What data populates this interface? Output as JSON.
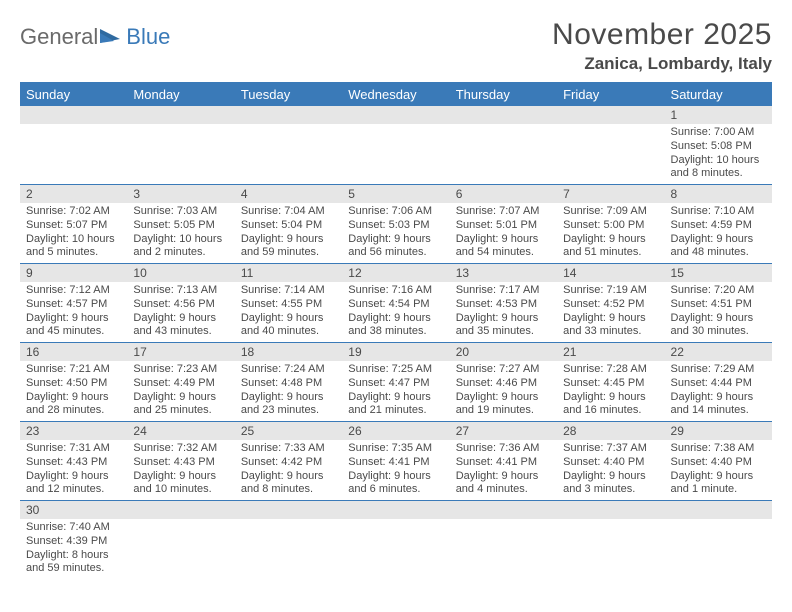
{
  "logo": {
    "text1": "General",
    "text2": "Blue"
  },
  "title": "November 2025",
  "location": "Zanica, Lombardy, Italy",
  "colors": {
    "header_bg": "#3a7ab8",
    "header_text": "#ffffff",
    "daynum_bg": "#e6e6e6",
    "row_border": "#3a7ab8",
    "body_text": "#4a4a4a"
  },
  "weekdays": [
    "Sunday",
    "Monday",
    "Tuesday",
    "Wednesday",
    "Thursday",
    "Friday",
    "Saturday"
  ],
  "weeks": [
    [
      {
        "n": "",
        "sr": "",
        "ss": "",
        "dl": ""
      },
      {
        "n": "",
        "sr": "",
        "ss": "",
        "dl": ""
      },
      {
        "n": "",
        "sr": "",
        "ss": "",
        "dl": ""
      },
      {
        "n": "",
        "sr": "",
        "ss": "",
        "dl": ""
      },
      {
        "n": "",
        "sr": "",
        "ss": "",
        "dl": ""
      },
      {
        "n": "",
        "sr": "",
        "ss": "",
        "dl": ""
      },
      {
        "n": "1",
        "sr": "Sunrise: 7:00 AM",
        "ss": "Sunset: 5:08 PM",
        "dl": "Daylight: 10 hours and 8 minutes."
      }
    ],
    [
      {
        "n": "2",
        "sr": "Sunrise: 7:02 AM",
        "ss": "Sunset: 5:07 PM",
        "dl": "Daylight: 10 hours and 5 minutes."
      },
      {
        "n": "3",
        "sr": "Sunrise: 7:03 AM",
        "ss": "Sunset: 5:05 PM",
        "dl": "Daylight: 10 hours and 2 minutes."
      },
      {
        "n": "4",
        "sr": "Sunrise: 7:04 AM",
        "ss": "Sunset: 5:04 PM",
        "dl": "Daylight: 9 hours and 59 minutes."
      },
      {
        "n": "5",
        "sr": "Sunrise: 7:06 AM",
        "ss": "Sunset: 5:03 PM",
        "dl": "Daylight: 9 hours and 56 minutes."
      },
      {
        "n": "6",
        "sr": "Sunrise: 7:07 AM",
        "ss": "Sunset: 5:01 PM",
        "dl": "Daylight: 9 hours and 54 minutes."
      },
      {
        "n": "7",
        "sr": "Sunrise: 7:09 AM",
        "ss": "Sunset: 5:00 PM",
        "dl": "Daylight: 9 hours and 51 minutes."
      },
      {
        "n": "8",
        "sr": "Sunrise: 7:10 AM",
        "ss": "Sunset: 4:59 PM",
        "dl": "Daylight: 9 hours and 48 minutes."
      }
    ],
    [
      {
        "n": "9",
        "sr": "Sunrise: 7:12 AM",
        "ss": "Sunset: 4:57 PM",
        "dl": "Daylight: 9 hours and 45 minutes."
      },
      {
        "n": "10",
        "sr": "Sunrise: 7:13 AM",
        "ss": "Sunset: 4:56 PM",
        "dl": "Daylight: 9 hours and 43 minutes."
      },
      {
        "n": "11",
        "sr": "Sunrise: 7:14 AM",
        "ss": "Sunset: 4:55 PM",
        "dl": "Daylight: 9 hours and 40 minutes."
      },
      {
        "n": "12",
        "sr": "Sunrise: 7:16 AM",
        "ss": "Sunset: 4:54 PM",
        "dl": "Daylight: 9 hours and 38 minutes."
      },
      {
        "n": "13",
        "sr": "Sunrise: 7:17 AM",
        "ss": "Sunset: 4:53 PM",
        "dl": "Daylight: 9 hours and 35 minutes."
      },
      {
        "n": "14",
        "sr": "Sunrise: 7:19 AM",
        "ss": "Sunset: 4:52 PM",
        "dl": "Daylight: 9 hours and 33 minutes."
      },
      {
        "n": "15",
        "sr": "Sunrise: 7:20 AM",
        "ss": "Sunset: 4:51 PM",
        "dl": "Daylight: 9 hours and 30 minutes."
      }
    ],
    [
      {
        "n": "16",
        "sr": "Sunrise: 7:21 AM",
        "ss": "Sunset: 4:50 PM",
        "dl": "Daylight: 9 hours and 28 minutes."
      },
      {
        "n": "17",
        "sr": "Sunrise: 7:23 AM",
        "ss": "Sunset: 4:49 PM",
        "dl": "Daylight: 9 hours and 25 minutes."
      },
      {
        "n": "18",
        "sr": "Sunrise: 7:24 AM",
        "ss": "Sunset: 4:48 PM",
        "dl": "Daylight: 9 hours and 23 minutes."
      },
      {
        "n": "19",
        "sr": "Sunrise: 7:25 AM",
        "ss": "Sunset: 4:47 PM",
        "dl": "Daylight: 9 hours and 21 minutes."
      },
      {
        "n": "20",
        "sr": "Sunrise: 7:27 AM",
        "ss": "Sunset: 4:46 PM",
        "dl": "Daylight: 9 hours and 19 minutes."
      },
      {
        "n": "21",
        "sr": "Sunrise: 7:28 AM",
        "ss": "Sunset: 4:45 PM",
        "dl": "Daylight: 9 hours and 16 minutes."
      },
      {
        "n": "22",
        "sr": "Sunrise: 7:29 AM",
        "ss": "Sunset: 4:44 PM",
        "dl": "Daylight: 9 hours and 14 minutes."
      }
    ],
    [
      {
        "n": "23",
        "sr": "Sunrise: 7:31 AM",
        "ss": "Sunset: 4:43 PM",
        "dl": "Daylight: 9 hours and 12 minutes."
      },
      {
        "n": "24",
        "sr": "Sunrise: 7:32 AM",
        "ss": "Sunset: 4:43 PM",
        "dl": "Daylight: 9 hours and 10 minutes."
      },
      {
        "n": "25",
        "sr": "Sunrise: 7:33 AM",
        "ss": "Sunset: 4:42 PM",
        "dl": "Daylight: 9 hours and 8 minutes."
      },
      {
        "n": "26",
        "sr": "Sunrise: 7:35 AM",
        "ss": "Sunset: 4:41 PM",
        "dl": "Daylight: 9 hours and 6 minutes."
      },
      {
        "n": "27",
        "sr": "Sunrise: 7:36 AM",
        "ss": "Sunset: 4:41 PM",
        "dl": "Daylight: 9 hours and 4 minutes."
      },
      {
        "n": "28",
        "sr": "Sunrise: 7:37 AM",
        "ss": "Sunset: 4:40 PM",
        "dl": "Daylight: 9 hours and 3 minutes."
      },
      {
        "n": "29",
        "sr": "Sunrise: 7:38 AM",
        "ss": "Sunset: 4:40 PM",
        "dl": "Daylight: 9 hours and 1 minute."
      }
    ],
    [
      {
        "n": "30",
        "sr": "Sunrise: 7:40 AM",
        "ss": "Sunset: 4:39 PM",
        "dl": "Daylight: 8 hours and 59 minutes."
      },
      {
        "n": "",
        "sr": "",
        "ss": "",
        "dl": ""
      },
      {
        "n": "",
        "sr": "",
        "ss": "",
        "dl": ""
      },
      {
        "n": "",
        "sr": "",
        "ss": "",
        "dl": ""
      },
      {
        "n": "",
        "sr": "",
        "ss": "",
        "dl": ""
      },
      {
        "n": "",
        "sr": "",
        "ss": "",
        "dl": ""
      },
      {
        "n": "",
        "sr": "",
        "ss": "",
        "dl": ""
      }
    ]
  ]
}
